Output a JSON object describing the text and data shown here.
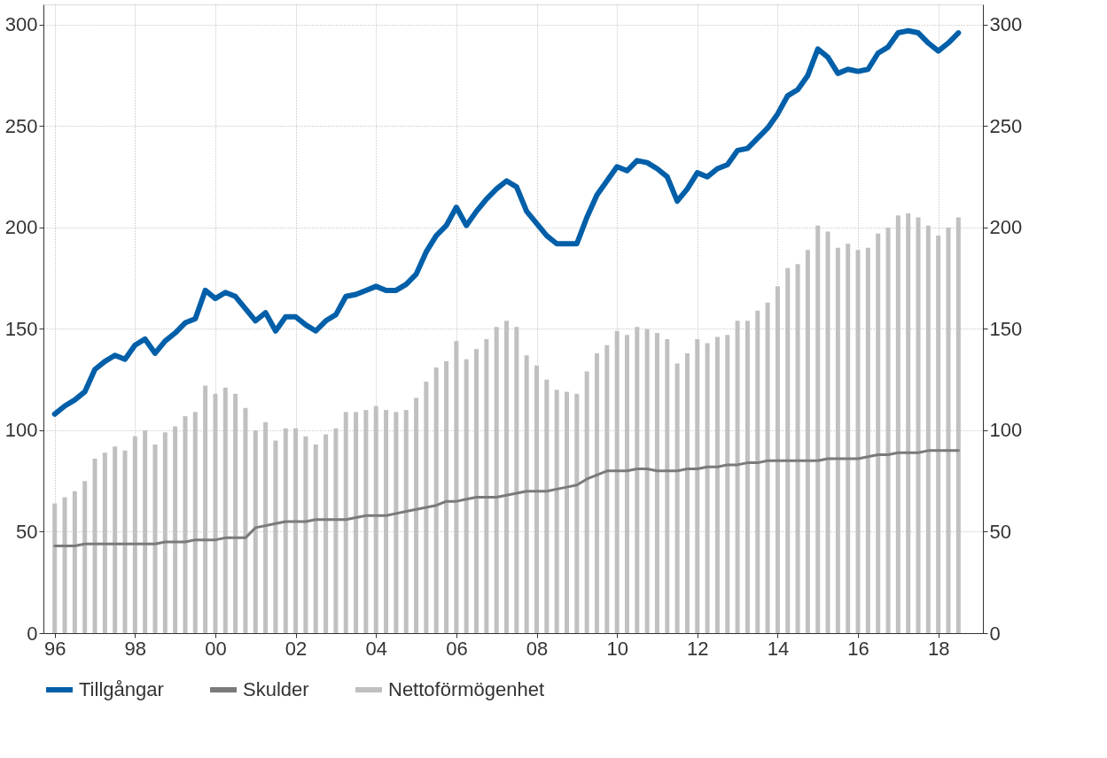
{
  "chart_data": {
    "type": "bar",
    "x": [
      1996.0,
      1996.25,
      1996.5,
      1996.75,
      1997.0,
      1997.25,
      1997.5,
      1997.75,
      1998.0,
      1998.25,
      1998.5,
      1998.75,
      1999.0,
      1999.25,
      1999.5,
      1999.75,
      2000.0,
      2000.25,
      2000.5,
      2000.75,
      2001.0,
      2001.25,
      2001.5,
      2001.75,
      2002.0,
      2002.25,
      2002.5,
      2002.75,
      2003.0,
      2003.25,
      2003.5,
      2003.75,
      2004.0,
      2004.25,
      2004.5,
      2004.75,
      2005.0,
      2005.25,
      2005.5,
      2005.75,
      2006.0,
      2006.25,
      2006.5,
      2006.75,
      2007.0,
      2007.25,
      2007.5,
      2007.75,
      2008.0,
      2008.25,
      2008.5,
      2008.75,
      2009.0,
      2009.25,
      2009.5,
      2009.75,
      2010.0,
      2010.25,
      2010.5,
      2010.75,
      2011.0,
      2011.25,
      2011.5,
      2011.75,
      2012.0,
      2012.25,
      2012.5,
      2012.75,
      2013.0,
      2013.25,
      2013.5,
      2013.75,
      2014.0,
      2014.25,
      2014.5,
      2014.75,
      2015.0,
      2015.25,
      2015.5,
      2015.75,
      2016.0,
      2016.25,
      2016.5,
      2016.75,
      2017.0,
      2017.25,
      2017.5,
      2017.75,
      2018.0,
      2018.25,
      2018.5
    ],
    "series": [
      {
        "name": "Tillgångar",
        "type": "line",
        "axis": "y2",
        "color": "#005fa8",
        "values": [
          108,
          112,
          115,
          119,
          130,
          134,
          137,
          135,
          142,
          145,
          138,
          144,
          148,
          153,
          155,
          169,
          165,
          168,
          166,
          160,
          154,
          158,
          149,
          156,
          156,
          152,
          149,
          154,
          157,
          166,
          167,
          169,
          171,
          169,
          169,
          172,
          177,
          188,
          196,
          201,
          210,
          201,
          208,
          214,
          219,
          223,
          220,
          208,
          202,
          196,
          192,
          192,
          192,
          205,
          216,
          223,
          230,
          228,
          233,
          232,
          229,
          225,
          213,
          219,
          227,
          225,
          229,
          231,
          238,
          239,
          244,
          249,
          256,
          265,
          268,
          275,
          288,
          284,
          276,
          278,
          277,
          278,
          286,
          289,
          296,
          297,
          296,
          291,
          287,
          291,
          296
        ]
      },
      {
        "name": "Skulder",
        "type": "line",
        "axis": "y2",
        "color": "#7a7a7a",
        "values": [
          43,
          43,
          43,
          44,
          44,
          44,
          44,
          44,
          44,
          44,
          44,
          45,
          45,
          45,
          46,
          46,
          46,
          47,
          47,
          47,
          52,
          53,
          54,
          55,
          55,
          55,
          56,
          56,
          56,
          56,
          57,
          58,
          58,
          58,
          59,
          60,
          61,
          62,
          63,
          65,
          65,
          66,
          67,
          67,
          67,
          68,
          69,
          70,
          70,
          70,
          71,
          72,
          73,
          76,
          78,
          80,
          80,
          80,
          81,
          81,
          80,
          80,
          80,
          81,
          81,
          82,
          82,
          83,
          83,
          84,
          84,
          85,
          85,
          85,
          85,
          85,
          85,
          86,
          86,
          86,
          86,
          87,
          88,
          88,
          89,
          89,
          89,
          90,
          90,
          90,
          90
        ]
      },
      {
        "name": "Nettoförmögenhet",
        "color": "#c0c0c0",
        "values": [
          64,
          67,
          70,
          75,
          86,
          89,
          92,
          90,
          97,
          100,
          93,
          99,
          102,
          107,
          109,
          122,
          118,
          121,
          118,
          111,
          100,
          104,
          95,
          101,
          101,
          97,
          93,
          98,
          101,
          109,
          109,
          110,
          112,
          110,
          109,
          110,
          116,
          124,
          131,
          134,
          144,
          135,
          140,
          145,
          151,
          154,
          151,
          137,
          132,
          125,
          120,
          119,
          118,
          129,
          138,
          142,
          149,
          147,
          151,
          150,
          148,
          145,
          133,
          138,
          145,
          143,
          146,
          147,
          154,
          154,
          159,
          163,
          171,
          180,
          182,
          189,
          201,
          198,
          190,
          192,
          189,
          190,
          197,
          200,
          206,
          207,
          205,
          201,
          196,
          200,
          205
        ]
      }
    ],
    "xlim": [
      1995.83,
      2019.0
    ],
    "xticks": [
      {
        "value": 1996,
        "label": "96"
      },
      {
        "value": 1998,
        "label": "98"
      },
      {
        "value": 2000,
        "label": "00"
      },
      {
        "value": 2002,
        "label": "02"
      },
      {
        "value": 2004,
        "label": "04"
      },
      {
        "value": 2006,
        "label": "06"
      },
      {
        "value": 2008,
        "label": "08"
      },
      {
        "value": 2010,
        "label": "10"
      },
      {
        "value": 2012,
        "label": "12"
      },
      {
        "value": 2014,
        "label": "14"
      },
      {
        "value": 2016,
        "label": "16"
      },
      {
        "value": 2018,
        "label": "18"
      }
    ],
    "ylim": [
      0,
      310
    ],
    "yticks": [
      0,
      50,
      100,
      150,
      200,
      250,
      300
    ],
    "y2lim": [
      0,
      310
    ],
    "y2ticks": [
      0,
      50,
      100,
      150,
      200,
      250,
      300
    ],
    "grid": true,
    "legend": "bottom"
  }
}
